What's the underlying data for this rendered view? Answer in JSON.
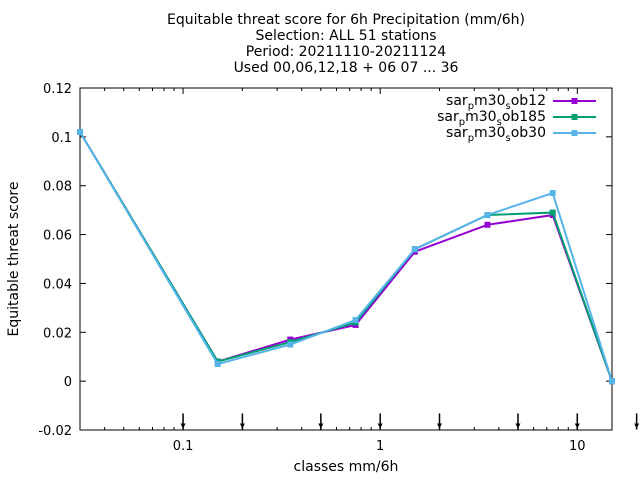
{
  "chart_data": {
    "type": "line",
    "title": [
      "Equitable threat score  for 6h Precipitation (mm/6h)",
      "Selection: ALL      51 stations",
      "Period: 20211110-20211124",
      "Used 00,06,12,18 + 06 07 ... 36"
    ],
    "xlabel": "classes mm/6h",
    "ylabel": "Equitable threat score",
    "x_scale": "log",
    "xlim": [
      0.03,
      15
    ],
    "ylim": [
      -0.02,
      0.12
    ],
    "x_ticks": [
      0.1,
      1,
      10
    ],
    "x_tick_labels": [
      "0.1",
      "1",
      "10"
    ],
    "y_ticks": [
      -0.02,
      0,
      0.02,
      0.04,
      0.06,
      0.08,
      0.1,
      0.12
    ],
    "y_tick_labels": [
      "-0.02",
      "0",
      "0.02",
      "0.04",
      "0.06",
      "0.08",
      "0.1",
      "0.12"
    ],
    "x_markers": [
      0.1,
      0.2,
      0.5,
      1,
      2,
      5,
      10,
      20
    ],
    "grid": false,
    "legend_position": "top-right",
    "x": [
      0.03,
      0.15,
      0.35,
      0.75,
      1.5,
      3.5,
      7.5,
      15
    ],
    "series": [
      {
        "name_base": "sar",
        "name_sub1": "p",
        "name_mid": "m30",
        "name_sub2": "s",
        "name_tail": "ob12",
        "color": "#9400d3",
        "marker": "square",
        "values": [
          0.102,
          0.008,
          0.017,
          0.023,
          0.053,
          0.064,
          0.068,
          0.0
        ]
      },
      {
        "name_base": "sar",
        "name_sub1": "p",
        "name_mid": "m30",
        "name_sub2": "s",
        "name_tail": "ob185",
        "color": "#009e73",
        "marker": "square",
        "values": [
          0.102,
          0.008,
          0.016,
          0.024,
          0.054,
          0.068,
          0.069,
          0.0
        ]
      },
      {
        "name_base": "sar",
        "name_sub1": "p",
        "name_mid": "m30",
        "name_sub2": "s",
        "name_tail": "ob30",
        "color": "#56b4e9",
        "marker": "square",
        "values": [
          0.102,
          0.007,
          0.015,
          0.025,
          0.054,
          0.068,
          0.077,
          0.0
        ]
      }
    ]
  }
}
